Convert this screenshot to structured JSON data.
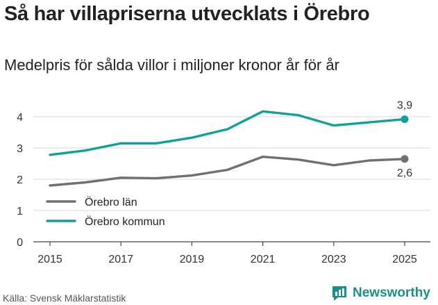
{
  "header": {
    "title": "Så har villapriserna utvecklats i Örebro",
    "subtitle": "Medelpris för sålda villor i miljoner kronor år för år"
  },
  "footer": {
    "source": "Källa: Svensk Mäklarstatistik",
    "brand": "Newsworthy"
  },
  "chart_data": {
    "type": "line",
    "title": "Så har villapriserna utvecklats i Örebro",
    "subtitle": "Medelpris för sålda villor i miljoner kronor år för år",
    "xlabel": "",
    "ylabel": "",
    "x": [
      2015,
      2016,
      2017,
      2018,
      2019,
      2020,
      2021,
      2022,
      2023,
      2024,
      2025
    ],
    "x_ticks": [
      "2015",
      "2017",
      "2019",
      "2021",
      "2023",
      "2025"
    ],
    "y_ticks": [
      "0",
      "1",
      "2",
      "3",
      "4"
    ],
    "ylim": [
      0,
      4.4
    ],
    "grid": true,
    "legend_position": "bottom-left",
    "series": [
      {
        "name": "Örebro län",
        "color": "#707070",
        "values": [
          1.8,
          1.9,
          2.05,
          2.03,
          2.12,
          2.3,
          2.72,
          2.63,
          2.45,
          2.6,
          2.65
        ],
        "end_label": "2,6"
      },
      {
        "name": "Örebro kommun",
        "color": "#12a19a",
        "values": [
          2.78,
          2.92,
          3.15,
          3.15,
          3.33,
          3.6,
          4.17,
          4.05,
          3.72,
          3.82,
          3.92
        ],
        "end_label": "3,9"
      }
    ]
  }
}
